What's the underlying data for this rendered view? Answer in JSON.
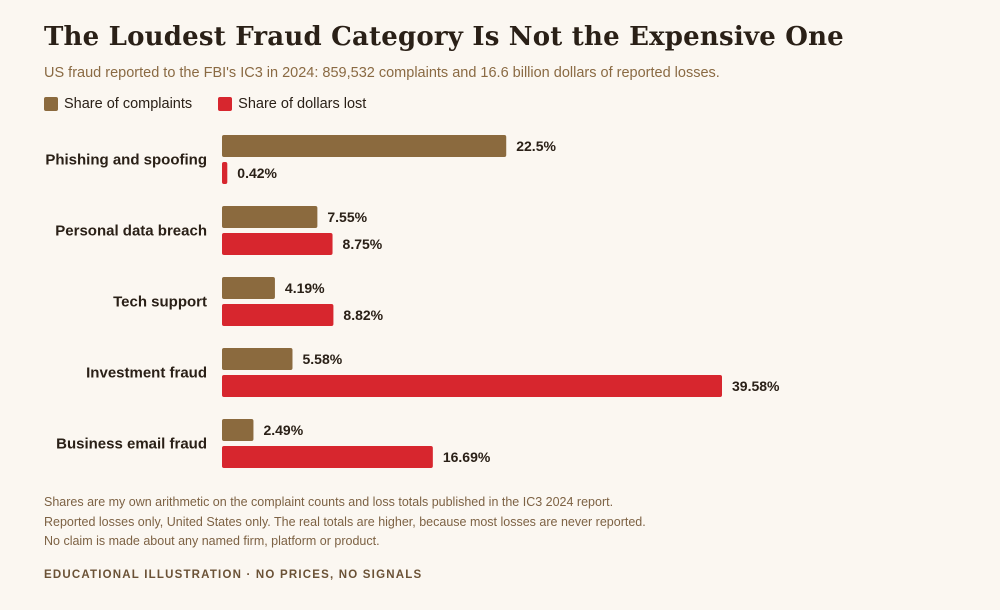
{
  "title": "The Loudest Fraud Category Is Not the Expensive One",
  "subtitle": "US fraud reported to the FBI's IC3 in 2024: 859,532 complaints and 16.6 billion dollars of reported losses.",
  "colors": {
    "complaints": "#8b6a3e",
    "dollars": "#d7262e",
    "background": "#fbf7f1"
  },
  "chart_data": {
    "type": "bar",
    "orientation": "horizontal",
    "categories": [
      "Phishing and spoofing",
      "Personal data breach",
      "Tech support",
      "Investment fraud",
      "Business email fraud"
    ],
    "series": [
      {
        "name": "Share of complaints",
        "values": [
          22.5,
          7.55,
          4.19,
          5.58,
          2.49
        ],
        "labels": [
          "22.5%",
          "7.55%",
          "4.19%",
          "5.58%",
          "2.49%"
        ]
      },
      {
        "name": "Share of dollars lost",
        "values": [
          0.42,
          8.75,
          8.82,
          39.58,
          16.69
        ],
        "labels": [
          "0.42%",
          "8.75%",
          "8.82%",
          "39.58%",
          "16.69%"
        ]
      }
    ],
    "xlim": [
      0,
      40
    ],
    "grid": false,
    "legend_position": "top-left"
  },
  "notes": [
    "Shares are my own arithmetic on the complaint counts and loss totals published in the IC3 2024 report.",
    "Reported losses only, United States only. The real totals are higher, because most losses are never reported.",
    "No claim is made about any named firm, platform or product."
  ],
  "footer": "EDUCATIONAL ILLUSTRATION · NO PRICES, NO SIGNALS"
}
